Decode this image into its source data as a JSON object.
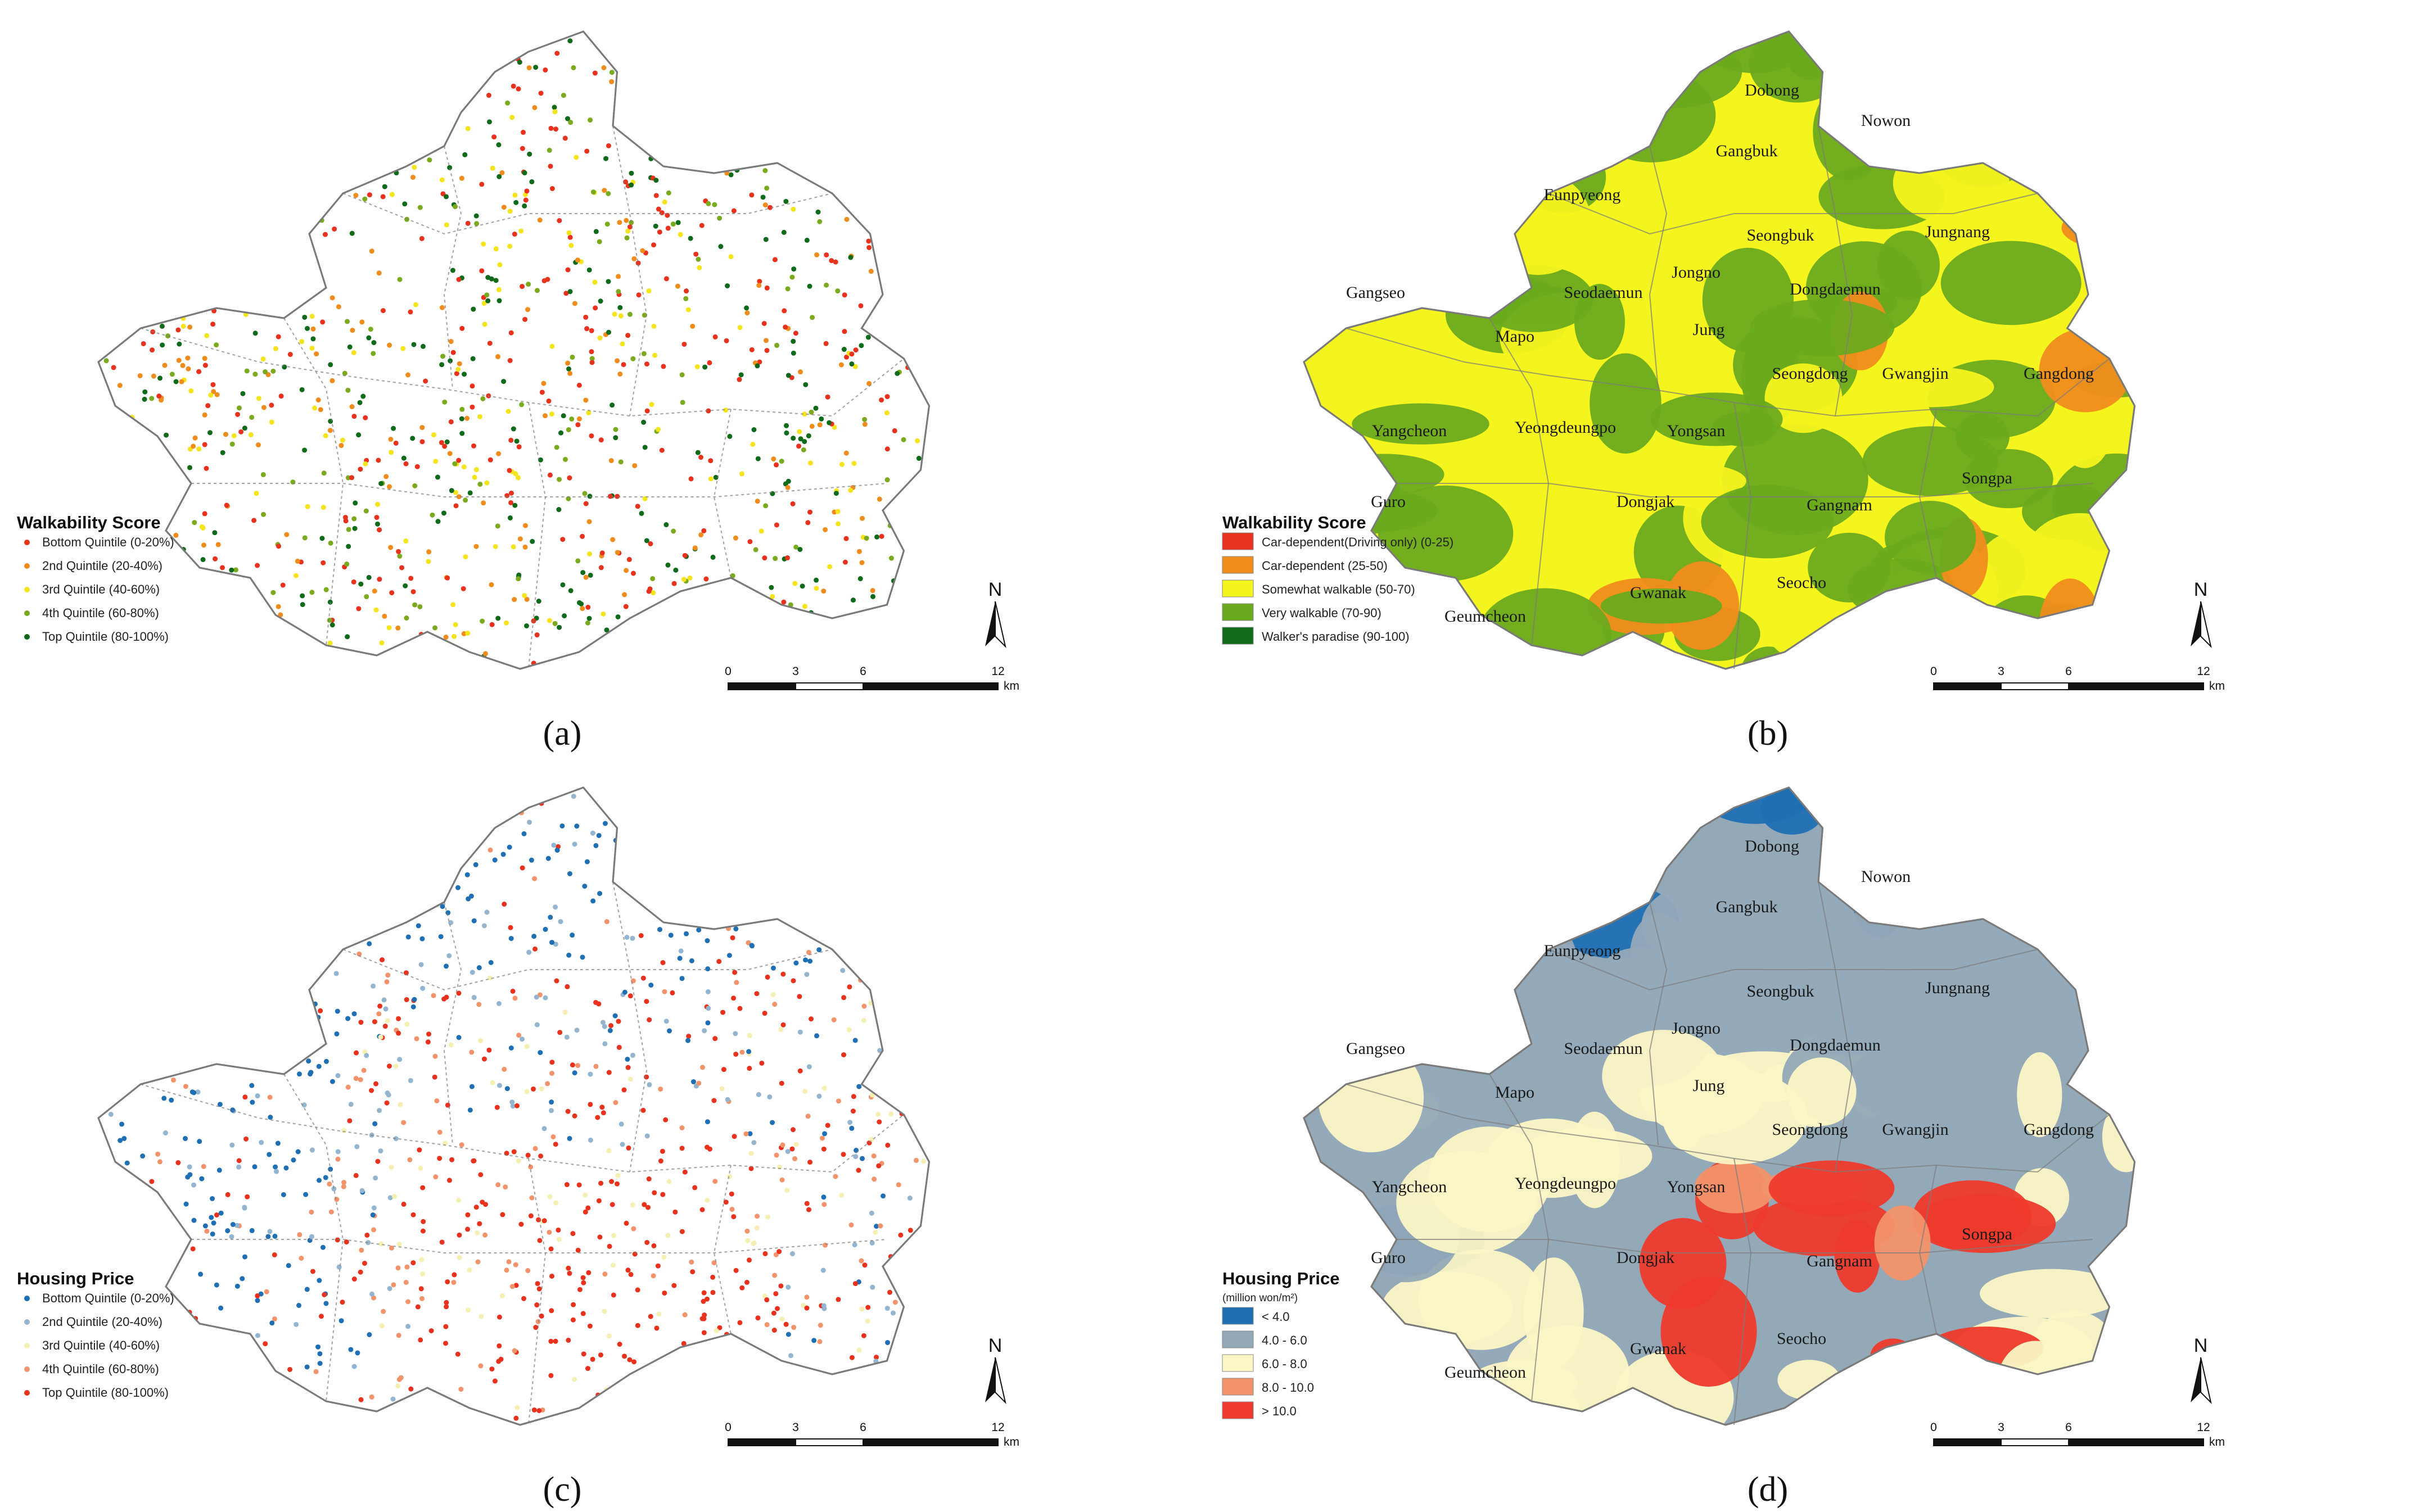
{
  "colors": {
    "red": "#e8321e",
    "orange": "#f08c1c",
    "yellow": "#f4f41e",
    "light_green": "#6aaa1e",
    "dark_green": "#0f6a1a",
    "price_blue": "#1f6fb4",
    "price_grey": "#93a9b8",
    "price_cream": "#fbf6c5",
    "price_salmon": "#f2936b",
    "price_red": "#ee3a2c",
    "boundary": "#7a7a7a"
  },
  "scale_bar": {
    "ticks": [
      "0",
      "3",
      "6",
      "12"
    ],
    "unit": "km"
  },
  "north_label": "N",
  "panels": [
    {
      "id": "a",
      "label": "(a)",
      "type": "point-map",
      "legend_title": "Walkability Score",
      "legend_subtitle": "",
      "legend": [
        {
          "label": "Bottom Quintile (0-20%)",
          "color": "#e8321e"
        },
        {
          "label": "2nd Quintile (20-40%)",
          "color": "#f08c1c"
        },
        {
          "label": "3rd Quintile (40-60%)",
          "color": "#f4e41e"
        },
        {
          "label": "4th Quintile (60-80%)",
          "color": "#7aaa1e"
        },
        {
          "label": "Top Quintile (80-100%)",
          "color": "#0f6a1a"
        }
      ],
      "districts": []
    },
    {
      "id": "b",
      "label": "(b)",
      "type": "surface-map",
      "legend_title": "Walkability Score",
      "legend_subtitle": "",
      "legend": [
        {
          "label": "Car-dependent(Driving only) (0-25)",
          "color": "#e8321e"
        },
        {
          "label": "Car-dependent (25-50)",
          "color": "#f08c1c"
        },
        {
          "label": "Somewhat walkable (50-70)",
          "color": "#f4f41e"
        },
        {
          "label": "Very walkable (70-90)",
          "color": "#6aaa1e"
        },
        {
          "label": "Walker's paradise (90-100)",
          "color": "#0f6a1a"
        }
      ],
      "districts": [
        "Dobong",
        "Nowon",
        "Gangbuk",
        "Eunpyeong",
        "Seongbuk",
        "Jungnang",
        "Gangseo",
        "Seodaemun",
        "Jongno",
        "Dongdaemun",
        "Mapo",
        "Jung",
        "Seongdong",
        "Gwangjin",
        "Gangdong",
        "Yangcheon",
        "Yeongdeungpo",
        "Yongsan",
        "Songpa",
        "Guro",
        "Dongjak",
        "Gangnam",
        "Gwanak",
        "Seocho",
        "Geumcheon"
      ]
    },
    {
      "id": "c",
      "label": "(c)",
      "type": "point-map",
      "legend_title": "Housing Price",
      "legend_subtitle": "",
      "legend": [
        {
          "label": "Bottom Quintile (0-20%)",
          "color": "#1f6fb4"
        },
        {
          "label": "2nd Quintile (20-40%)",
          "color": "#93b5cf"
        },
        {
          "label": "3rd Quintile (40-60%)",
          "color": "#f6efb4"
        },
        {
          "label": "4th Quintile (60-80%)",
          "color": "#f2936b"
        },
        {
          "label": "Top Quintile (80-100%)",
          "color": "#e8321e"
        }
      ],
      "districts": []
    },
    {
      "id": "d",
      "label": "(d)",
      "type": "surface-map",
      "legend_title": "Housing Price",
      "legend_subtitle": "(million won/m²)",
      "legend": [
        {
          "label": "< 4.0",
          "color": "#1f6fb4"
        },
        {
          "label": "4.0 - 6.0",
          "color": "#93a9b8"
        },
        {
          "label": "6.0 - 8.0",
          "color": "#fbf6c5"
        },
        {
          "label": "8.0 - 10.0",
          "color": "#f2936b"
        },
        {
          "label": "> 10.0",
          "color": "#ee3a2c"
        }
      ],
      "districts": [
        "Dobong",
        "Nowon",
        "Gangbuk",
        "Eunpyeong",
        "Seongbuk",
        "Jungnang",
        "Gangseo",
        "Seodaemun",
        "Jongno",
        "Dongdaemun",
        "Mapo",
        "Jung",
        "Seongdong",
        "Gwangjin",
        "Gangdong",
        "Yangcheon",
        "Yeongdeungpo",
        "Yongsan",
        "Songpa",
        "Guro",
        "Dongjak",
        "Gangnam",
        "Gwanak",
        "Seocho",
        "Geumcheon"
      ]
    }
  ]
}
